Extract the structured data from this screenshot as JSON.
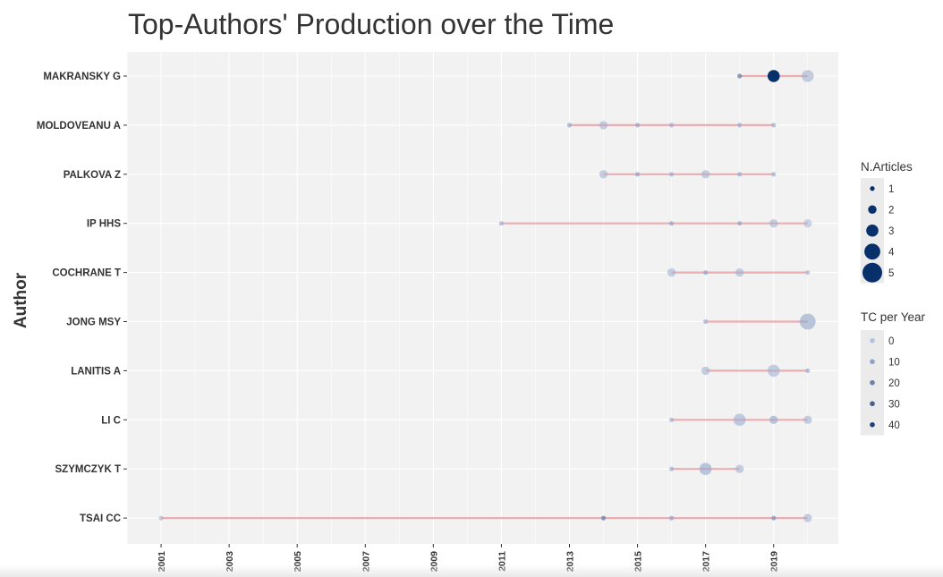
{
  "chart_data": {
    "type": "scatter",
    "title": "Top-Authors' Production over the Time",
    "ylabel": "Author",
    "xlabel": "",
    "xlim": [
      2000,
      2020.9
    ],
    "x_ticks": [
      2001,
      2003,
      2005,
      2007,
      2009,
      2011,
      2013,
      2015,
      2017,
      2019
    ],
    "authors": [
      "MAKRANSKY G",
      "MOLDOVEANU A",
      "PALKOVA Z",
      "IP HHS",
      "COCHRANE T",
      "JONG MSY",
      "LANITIS A",
      "LI C",
      "SZYMCZYK T",
      "TSAI CC"
    ],
    "points": [
      {
        "author": "MAKRANSKY G",
        "year": 2018,
        "n_articles": 1,
        "tc_per_year": 20
      },
      {
        "author": "MAKRANSKY G",
        "year": 2019,
        "n_articles": 3,
        "tc_per_year": 45
      },
      {
        "author": "MAKRANSKY G",
        "year": 2020,
        "n_articles": 3,
        "tc_per_year": 5
      },
      {
        "author": "MOLDOVEANU A",
        "year": 2013,
        "n_articles": 1,
        "tc_per_year": 10
      },
      {
        "author": "MOLDOVEANU A",
        "year": 2014,
        "n_articles": 2,
        "tc_per_year": 5
      },
      {
        "author": "MOLDOVEANU A",
        "year": 2015,
        "n_articles": 1,
        "tc_per_year": 10
      },
      {
        "author": "MOLDOVEANU A",
        "year": 2016,
        "n_articles": 1,
        "tc_per_year": 8
      },
      {
        "author": "MOLDOVEANU A",
        "year": 2018,
        "n_articles": 1,
        "tc_per_year": 8
      },
      {
        "author": "MOLDOVEANU A",
        "year": 2019,
        "n_articles": 1,
        "tc_per_year": 8
      },
      {
        "author": "PALKOVA Z",
        "year": 2014,
        "n_articles": 2,
        "tc_per_year": 5
      },
      {
        "author": "PALKOVA Z",
        "year": 2015,
        "n_articles": 1,
        "tc_per_year": 10
      },
      {
        "author": "PALKOVA Z",
        "year": 2016,
        "n_articles": 1,
        "tc_per_year": 8
      },
      {
        "author": "PALKOVA Z",
        "year": 2017,
        "n_articles": 2,
        "tc_per_year": 5
      },
      {
        "author": "PALKOVA Z",
        "year": 2018,
        "n_articles": 1,
        "tc_per_year": 8
      },
      {
        "author": "PALKOVA Z",
        "year": 2019,
        "n_articles": 1,
        "tc_per_year": 8
      },
      {
        "author": "IP HHS",
        "year": 2011,
        "n_articles": 1,
        "tc_per_year": 8
      },
      {
        "author": "IP HHS",
        "year": 2016,
        "n_articles": 1,
        "tc_per_year": 10
      },
      {
        "author": "IP HHS",
        "year": 2018,
        "n_articles": 1,
        "tc_per_year": 10
      },
      {
        "author": "IP HHS",
        "year": 2019,
        "n_articles": 2,
        "tc_per_year": 5
      },
      {
        "author": "IP HHS",
        "year": 2020,
        "n_articles": 2,
        "tc_per_year": 3
      },
      {
        "author": "COCHRANE T",
        "year": 2016,
        "n_articles": 2,
        "tc_per_year": 5
      },
      {
        "author": "COCHRANE T",
        "year": 2017,
        "n_articles": 1,
        "tc_per_year": 10
      },
      {
        "author": "COCHRANE T",
        "year": 2018,
        "n_articles": 2,
        "tc_per_year": 5
      },
      {
        "author": "COCHRANE T",
        "year": 2020,
        "n_articles": 1,
        "tc_per_year": 5
      },
      {
        "author": "JONG MSY",
        "year": 2017,
        "n_articles": 1,
        "tc_per_year": 8
      },
      {
        "author": "JONG MSY",
        "year": 2020,
        "n_articles": 4,
        "tc_per_year": 8
      },
      {
        "author": "LANITIS A",
        "year": 2017,
        "n_articles": 2,
        "tc_per_year": 5
      },
      {
        "author": "LANITIS A",
        "year": 2019,
        "n_articles": 3,
        "tc_per_year": 5
      },
      {
        "author": "LANITIS A",
        "year": 2020,
        "n_articles": 1,
        "tc_per_year": 8
      },
      {
        "author": "LI C",
        "year": 2016,
        "n_articles": 1,
        "tc_per_year": 8
      },
      {
        "author": "LI C",
        "year": 2018,
        "n_articles": 3,
        "tc_per_year": 6
      },
      {
        "author": "LI C",
        "year": 2019,
        "n_articles": 2,
        "tc_per_year": 8
      },
      {
        "author": "LI C",
        "year": 2020,
        "n_articles": 2,
        "tc_per_year": 5
      },
      {
        "author": "SZYMCZYK T",
        "year": 2016,
        "n_articles": 1,
        "tc_per_year": 8
      },
      {
        "author": "SZYMCZYK T",
        "year": 2017,
        "n_articles": 3,
        "tc_per_year": 8
      },
      {
        "author": "SZYMCZYK T",
        "year": 2018,
        "n_articles": 2,
        "tc_per_year": 5
      },
      {
        "author": "TSAI CC",
        "year": 2001,
        "n_articles": 1,
        "tc_per_year": 5
      },
      {
        "author": "TSAI CC",
        "year": 2014,
        "n_articles": 1,
        "tc_per_year": 20
      },
      {
        "author": "TSAI CC",
        "year": 2016,
        "n_articles": 1,
        "tc_per_year": 10
      },
      {
        "author": "TSAI CC",
        "year": 2019,
        "n_articles": 1,
        "tc_per_year": 15
      },
      {
        "author": "TSAI CC",
        "year": 2020,
        "n_articles": 2,
        "tc_per_year": 5
      }
    ],
    "legend": {
      "placement": "right",
      "n_articles": {
        "title": "N.Articles",
        "values": [
          1,
          2,
          3,
          4,
          5
        ],
        "labels": [
          "1",
          "2",
          "3",
          "4",
          "5"
        ]
      },
      "tc_per_year": {
        "title": "TC per Year",
        "values": [
          0,
          10,
          20,
          30,
          40
        ],
        "labels": [
          "0",
          "10",
          "20",
          "30",
          "40"
        ]
      }
    },
    "grid": true,
    "colors": {
      "panel_background": "#f2f2f2",
      "grid": "#ffffff",
      "segment": "#e8a0a6",
      "point_dark": "#08306b",
      "point_light": "#b4c3de",
      "legend_key_background": "#ebebeb"
    }
  }
}
